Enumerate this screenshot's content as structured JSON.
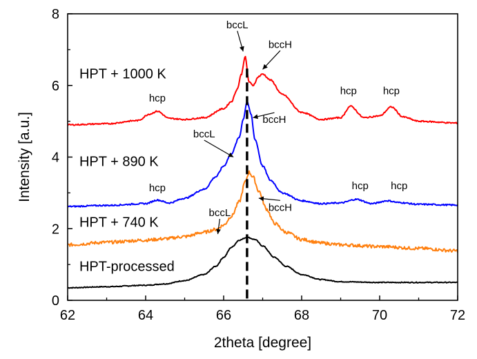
{
  "chart_data": {
    "type": "line",
    "xlabel": "2theta [degree]",
    "ylabel": "Intensity [a.u.]",
    "xlim": [
      62,
      72
    ],
    "ylim": [
      0,
      8
    ],
    "x_ticks": [
      "62",
      "64",
      "66",
      "68",
      "70",
      "72"
    ],
    "y_ticks": [
      "0",
      "2",
      "4",
      "6",
      "8"
    ],
    "grid": false,
    "series": [
      {
        "name": "HPT-processed",
        "color": "#000000",
        "x": [
          62,
          63,
          64,
          64.5,
          65,
          65.5,
          65.8,
          66,
          66.2,
          66.4,
          66.6,
          66.8,
          67,
          67.3,
          67.6,
          68,
          68.5,
          69,
          70,
          71,
          72
        ],
        "y": [
          0.35,
          0.38,
          0.42,
          0.46,
          0.55,
          0.72,
          0.95,
          1.2,
          1.48,
          1.68,
          1.76,
          1.7,
          1.52,
          1.2,
          0.95,
          0.72,
          0.58,
          0.52,
          0.5,
          0.5,
          0.5
        ]
      },
      {
        "name": "HPT + 740 K",
        "color": "#ff7f0e",
        "x": [
          62,
          63,
          64,
          64.5,
          65,
          65.5,
          65.8,
          66,
          66.2,
          66.4,
          66.55,
          66.65,
          66.75,
          66.9,
          67.1,
          67.3,
          67.6,
          68,
          68.5,
          69,
          70,
          71,
          72
        ],
        "y": [
          1.55,
          1.62,
          1.68,
          1.72,
          1.78,
          1.9,
          1.98,
          2.1,
          2.35,
          2.75,
          3.3,
          3.58,
          3.45,
          3.05,
          2.55,
          2.15,
          1.9,
          1.7,
          1.6,
          1.55,
          1.5,
          1.45,
          1.38
        ]
      },
      {
        "name": "HPT + 890 K",
        "color": "#0000ff",
        "x": [
          62,
          63,
          64,
          64.3,
          64.6,
          65,
          65.5,
          65.8,
          66,
          66.2,
          66.4,
          66.5,
          66.6,
          66.7,
          66.8,
          67,
          67.2,
          67.5,
          68,
          68.5,
          69,
          69.4,
          69.8,
          70.2,
          70.5,
          71,
          72
        ],
        "y": [
          2.62,
          2.65,
          2.7,
          2.8,
          2.72,
          2.85,
          3.1,
          3.45,
          3.75,
          4.1,
          4.55,
          5.05,
          5.55,
          5.2,
          4.5,
          3.75,
          3.35,
          3.0,
          2.78,
          2.7,
          2.72,
          2.82,
          2.7,
          2.78,
          2.73,
          2.68,
          2.66
        ]
      },
      {
        "name": "HPT + 1000 K",
        "color": "#ff0000",
        "x": [
          62,
          63,
          63.8,
          64.1,
          64.3,
          64.6,
          65,
          65.5,
          66,
          66.2,
          66.35,
          66.45,
          66.55,
          66.65,
          66.75,
          66.9,
          67,
          67.2,
          67.5,
          68,
          68.5,
          69,
          69.25,
          69.6,
          70,
          70.3,
          70.6,
          71,
          72
        ],
        "y": [
          4.9,
          4.93,
          5.02,
          5.2,
          5.28,
          5.08,
          5.05,
          5.1,
          5.35,
          5.55,
          5.9,
          6.3,
          6.8,
          6.1,
          6.0,
          6.25,
          6.32,
          6.15,
          5.75,
          5.25,
          5.05,
          5.1,
          5.42,
          5.1,
          5.15,
          5.4,
          5.12,
          5.0,
          4.95
        ]
      }
    ],
    "series_labels": [
      {
        "text": "HPT + 1000 K",
        "x": 62.3,
        "y": 6.2
      },
      {
        "text": "HPT + 890 K",
        "x": 62.3,
        "y": 3.75
      },
      {
        "text": "HPT + 740 K",
        "x": 62.3,
        "y": 2.05
      },
      {
        "text": "HPT-processed",
        "x": 62.3,
        "y": 0.82
      }
    ],
    "annotations": [
      {
        "text": "hcp",
        "x": 64.3,
        "y": 5.55,
        "arrow": null
      },
      {
        "text": "bccL",
        "x": 66.35,
        "y": 7.6,
        "arrow": [
          66.5,
          6.95
        ]
      },
      {
        "text": "bccH",
        "x": 67.45,
        "y": 7.05,
        "arrow": [
          67.0,
          6.45
        ]
      },
      {
        "text": "hcp",
        "x": 69.2,
        "y": 5.75,
        "arrow": null
      },
      {
        "text": "hcp",
        "x": 70.3,
        "y": 5.75,
        "arrow": null
      },
      {
        "text": "bccL",
        "x": 65.5,
        "y": 4.55,
        "arrow": [
          66.25,
          4.0
        ]
      },
      {
        "text": "bccH",
        "x": 67.3,
        "y": 4.95,
        "arrow": [
          66.75,
          5.1
        ]
      },
      {
        "text": "hcp",
        "x": 64.3,
        "y": 3.05,
        "arrow": null
      },
      {
        "text": "hcp",
        "x": 69.5,
        "y": 3.1,
        "arrow": null
      },
      {
        "text": "hcp",
        "x": 70.5,
        "y": 3.1,
        "arrow": null
      },
      {
        "text": "bccL",
        "x": 65.9,
        "y": 2.35,
        "arrow": [
          65.85,
          1.85
        ]
      },
      {
        "text": "bccH",
        "x": 67.45,
        "y": 2.5,
        "arrow": [
          66.9,
          2.85
        ]
      }
    ],
    "reference_line": {
      "x": 66.6,
      "y_from": 0.05,
      "y_to": 6.5,
      "style": "dashed"
    }
  }
}
